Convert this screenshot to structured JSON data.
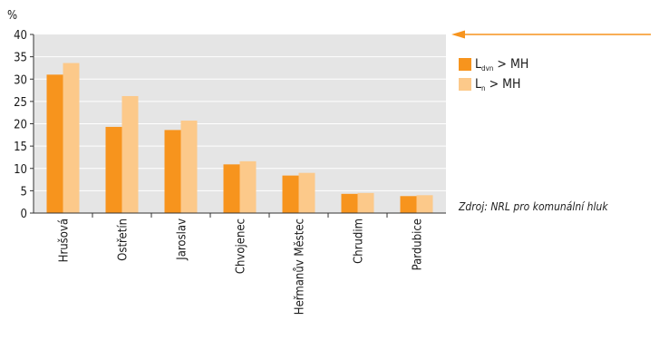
{
  "chart_data": {
    "type": "bar",
    "unit_label": "%",
    "categories": [
      "Hrušová",
      "Ostřetín",
      "Jaroslav",
      "Chvojenec",
      "Heřmanův Městec",
      "Chrudim",
      "Pardubice"
    ],
    "series": [
      {
        "name": "Ldvn > MH",
        "color": "#f7941d",
        "values": [
          31.0,
          19.3,
          18.6,
          10.9,
          8.4,
          4.3,
          3.8
        ]
      },
      {
        "name": "Ln > MH",
        "color": "#fcc98a",
        "values": [
          33.6,
          26.2,
          20.7,
          11.6,
          9.0,
          4.5,
          4.0
        ]
      }
    ],
    "yticks": [
      "0",
      "5",
      "10",
      "15",
      "20",
      "25",
      "30",
      "35",
      "40"
    ],
    "ylim": [
      0,
      40
    ],
    "grid": true,
    "background_color": "#e5e5e5",
    "grid_color": "#ffffff",
    "legend": [
      {
        "main": "L",
        "sub": "dvn",
        "rest": " > MH"
      },
      {
        "main": "L",
        "sub": "n",
        "rest": " > MH"
      }
    ],
    "legend_position": "right",
    "source": "Zdroj: NRL pro komunální hluk",
    "arrow_color": "#f7941d",
    "arrow_icon": "left-arrow-icon"
  }
}
